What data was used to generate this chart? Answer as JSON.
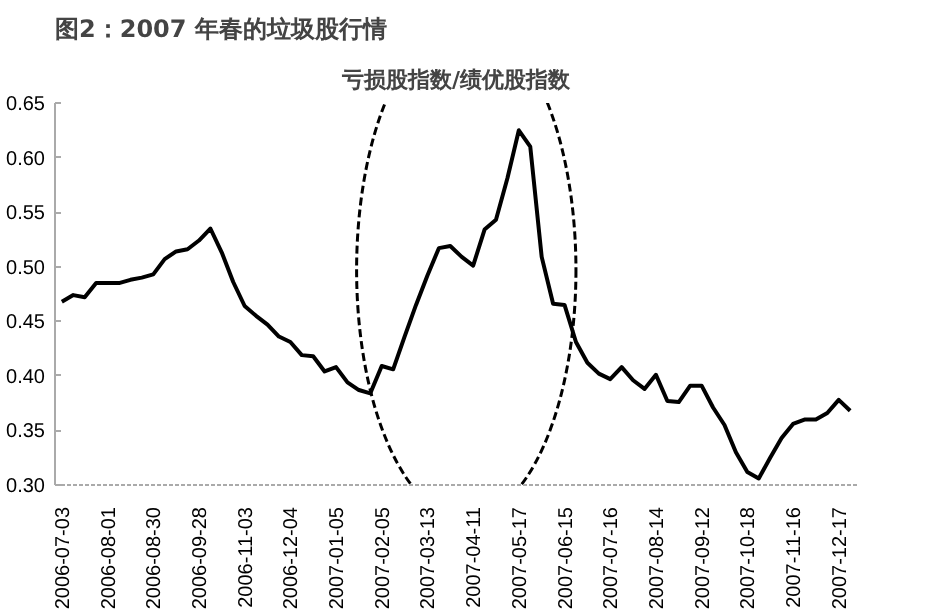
{
  "chart_data": {
    "type": "line",
    "title": "图2：2007 年春的垃圾股行情",
    "subtitle": "亏损股指数/绩优股指数",
    "categories": [
      "2006-07-03",
      null,
      null,
      null,
      "2006-08-01",
      null,
      null,
      null,
      "2006-08-30",
      null,
      null,
      null,
      "2006-09-28",
      null,
      null,
      null,
      "2006-11-03",
      null,
      null,
      null,
      "2006-12-04",
      null,
      null,
      null,
      "2007-01-05",
      null,
      null,
      null,
      "2007-02-05",
      null,
      null,
      null,
      "2007-03-13",
      null,
      null,
      null,
      "2007-04-11",
      null,
      null,
      null,
      "2007-05-17",
      null,
      null,
      null,
      "2007-06-15",
      null,
      null,
      null,
      "2007-07-16",
      null,
      null,
      null,
      "2007-08-14",
      null,
      null,
      null,
      "2007-09-12",
      null,
      null,
      null,
      "2007-10-18",
      null,
      null,
      null,
      "2007-11-16",
      null,
      null,
      null,
      "2007-12-17",
      null
    ],
    "series": [
      {
        "color": "#000000",
        "values": [
          0.468,
          0.474,
          0.472,
          0.485,
          0.485,
          0.485,
          0.488,
          0.49,
          0.493,
          0.507,
          0.514,
          0.516,
          0.524,
          0.535,
          0.513,
          0.486,
          0.464,
          0.455,
          0.447,
          0.436,
          0.431,
          0.419,
          0.418,
          0.404,
          0.408,
          0.394,
          0.387,
          0.384,
          0.409,
          0.406,
          0.436,
          0.465,
          0.492,
          0.517,
          0.519,
          0.509,
          0.501,
          0.534,
          0.543,
          0.581,
          0.625,
          0.61,
          0.509,
          0.466,
          0.465,
          0.431,
          0.412,
          0.402,
          0.397,
          0.408,
          0.396,
          0.388,
          0.401,
          0.377,
          0.376,
          0.391,
          0.391,
          0.371,
          0.355,
          0.33,
          0.312,
          0.306,
          0.325,
          0.343,
          0.356,
          0.36,
          0.36,
          0.366,
          0.378,
          0.368
        ]
      }
    ],
    "ylim": [
      0.3,
      0.65
    ],
    "yticks": [
      {
        "value": 0.3,
        "label": "0.30"
      },
      {
        "value": 0.35,
        "label": "0.35"
      },
      {
        "value": 0.4,
        "label": "0.40"
      },
      {
        "value": 0.45,
        "label": "0.45"
      },
      {
        "value": 0.5,
        "label": "0.50"
      },
      {
        "value": 0.55,
        "label": "0.55"
      },
      {
        "value": 0.6,
        "label": "0.60"
      },
      {
        "value": 0.65,
        "label": "0.65"
      }
    ],
    "grid": false,
    "line_style": "solid",
    "marker": "none"
  }
}
